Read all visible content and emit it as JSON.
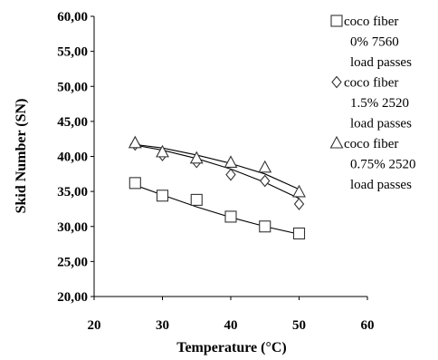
{
  "chart_data": {
    "type": "scatter",
    "xlabel": "Temperature (°C)",
    "ylabel": "Skid Number (SN)",
    "xlim": [
      20,
      60
    ],
    "ylim": [
      20,
      60
    ],
    "xticks": [
      "20",
      "30",
      "40",
      "50",
      "60"
    ],
    "yticks": [
      "20,00",
      "25,00",
      "30,00",
      "35,00",
      "40,00",
      "45,00",
      "50,00",
      "55,00",
      "60,00"
    ],
    "grid": false,
    "legend_position": "right",
    "series": [
      {
        "name": "coco fiber 0% 7560 load passes",
        "legend_lines": [
          "coco fiber",
          "0%  7560",
          "load passes"
        ],
        "marker": "square",
        "x": [
          26,
          30,
          35,
          40,
          45,
          50
        ],
        "y": [
          36.2,
          34.4,
          33.8,
          31.4,
          30.0,
          29.0
        ],
        "trend": [
          [
            26,
            35.9
          ],
          [
            30,
            34.5
          ],
          [
            35,
            32.8
          ],
          [
            40,
            31.3
          ],
          [
            45,
            30.0
          ],
          [
            50,
            28.9
          ]
        ]
      },
      {
        "name": "coco fiber 1.5% 2520 load passes",
        "legend_lines": [
          "coco fiber",
          "1.5% 2520",
          "load passes"
        ],
        "marker": "diamond",
        "x": [
          26,
          30,
          35,
          40,
          45,
          50
        ],
        "y": [
          41.7,
          40.2,
          39.2,
          37.4,
          36.5,
          33.2
        ],
        "trend": [
          [
            26,
            41.6
          ],
          [
            30,
            40.9
          ],
          [
            35,
            39.7
          ],
          [
            40,
            38.2
          ],
          [
            45,
            36.3
          ],
          [
            50,
            34.0
          ]
        ]
      },
      {
        "name": "coco fiber 0.75% 2520 load passes",
        "legend_lines": [
          "coco fiber",
          "0.75% 2520",
          "load passes"
        ],
        "marker": "triangle",
        "x": [
          26,
          30,
          35,
          40,
          45,
          50
        ],
        "y": [
          41.9,
          40.6,
          39.7,
          39.1,
          38.4,
          34.9
        ],
        "trend": [
          [
            26,
            41.7
          ],
          [
            30,
            41.2
          ],
          [
            35,
            40.2
          ],
          [
            40,
            39.0
          ],
          [
            45,
            37.5
          ],
          [
            50,
            35.3
          ]
        ]
      }
    ]
  }
}
